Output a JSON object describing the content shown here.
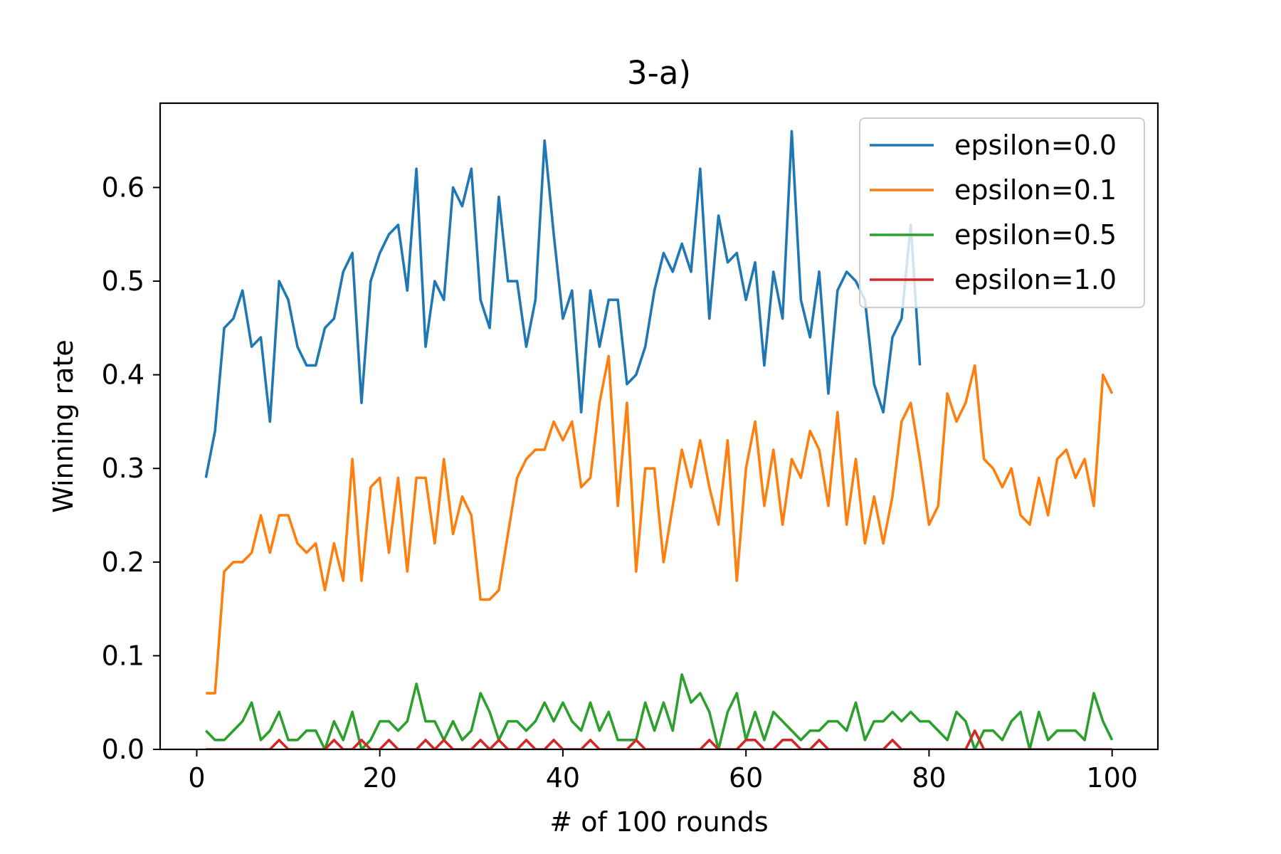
{
  "chart_data": {
    "type": "line",
    "title": "3-a)",
    "xlabel": "# of 100 rounds",
    "ylabel": "Winning rate",
    "xlim": [
      -4,
      105
    ],
    "ylim": [
      0.0,
      0.69
    ],
    "xticks": [
      0,
      20,
      40,
      60,
      80,
      100
    ],
    "xtick_labels": [
      "0",
      "20",
      "40",
      "60",
      "80",
      "100"
    ],
    "yticks": [
      0.0,
      0.1,
      0.2,
      0.3,
      0.4,
      0.5,
      0.6
    ],
    "ytick_labels": [
      "0.0",
      "0.1",
      "0.2",
      "0.3",
      "0.4",
      "0.5",
      "0.6"
    ],
    "grid": false,
    "legend_position": "top-right",
    "series": [
      {
        "name": "epsilon=0.0",
        "color": "#1f77b4",
        "x": [
          1,
          2,
          3,
          4,
          5,
          6,
          7,
          8,
          9,
          10,
          11,
          12,
          13,
          14,
          15,
          16,
          17,
          18,
          19,
          20,
          21,
          22,
          23,
          24,
          25,
          26,
          27,
          28,
          29,
          30,
          31,
          32,
          33,
          34,
          35,
          36,
          37,
          38,
          39,
          40,
          41,
          42,
          43,
          44,
          45,
          46,
          47,
          48,
          49,
          50,
          51,
          52,
          53,
          54,
          55,
          56,
          57,
          58,
          59,
          60,
          61,
          62,
          63,
          64,
          65,
          66,
          67,
          68,
          69,
          70,
          71,
          72,
          73,
          74,
          75,
          76,
          77,
          78,
          79
        ],
        "values": [
          0.29,
          0.34,
          0.45,
          0.46,
          0.49,
          0.43,
          0.44,
          0.35,
          0.5,
          0.48,
          0.43,
          0.41,
          0.41,
          0.45,
          0.46,
          0.51,
          0.53,
          0.37,
          0.5,
          0.53,
          0.55,
          0.56,
          0.49,
          0.62,
          0.43,
          0.5,
          0.48,
          0.6,
          0.58,
          0.62,
          0.48,
          0.45,
          0.59,
          0.5,
          0.5,
          0.43,
          0.48,
          0.65,
          0.55,
          0.46,
          0.49,
          0.36,
          0.49,
          0.43,
          0.48,
          0.48,
          0.39,
          0.4,
          0.43,
          0.49,
          0.53,
          0.51,
          0.54,
          0.51,
          0.62,
          0.46,
          0.57,
          0.52,
          0.53,
          0.48,
          0.52,
          0.41,
          0.51,
          0.46,
          0.66,
          0.48,
          0.44,
          0.51,
          0.38,
          0.49,
          0.51,
          0.5,
          0.48,
          0.39,
          0.36,
          0.44,
          0.46,
          0.56,
          0.41
        ]
      },
      {
        "name": "epsilon=0.1",
        "color": "#ff7f0e",
        "x": [
          1,
          2,
          3,
          4,
          5,
          6,
          7,
          8,
          9,
          10,
          11,
          12,
          13,
          14,
          15,
          16,
          17,
          18,
          19,
          20,
          21,
          22,
          23,
          24,
          25,
          26,
          27,
          28,
          29,
          30,
          31,
          32,
          33,
          34,
          35,
          36,
          37,
          38,
          39,
          40,
          41,
          42,
          43,
          44,
          45,
          46,
          47,
          48,
          49,
          50,
          51,
          52,
          53,
          54,
          55,
          56,
          57,
          58,
          59,
          60,
          61,
          62,
          63,
          64,
          65,
          66,
          67,
          68,
          69,
          70,
          71,
          72,
          73,
          74,
          75,
          76,
          77,
          78,
          79,
          80,
          81,
          82,
          83,
          84,
          85,
          86,
          87,
          88,
          89,
          90,
          91,
          92,
          93,
          94,
          95,
          96,
          97,
          98,
          99,
          100
        ],
        "values": [
          0.06,
          0.06,
          0.19,
          0.2,
          0.2,
          0.21,
          0.25,
          0.21,
          0.25,
          0.25,
          0.22,
          0.21,
          0.22,
          0.17,
          0.22,
          0.18,
          0.31,
          0.18,
          0.28,
          0.29,
          0.21,
          0.29,
          0.19,
          0.29,
          0.29,
          0.22,
          0.31,
          0.23,
          0.27,
          0.25,
          0.16,
          0.16,
          0.17,
          0.23,
          0.29,
          0.31,
          0.32,
          0.32,
          0.35,
          0.33,
          0.35,
          0.28,
          0.29,
          0.37,
          0.42,
          0.26,
          0.37,
          0.19,
          0.3,
          0.3,
          0.2,
          0.26,
          0.32,
          0.28,
          0.33,
          0.28,
          0.24,
          0.33,
          0.18,
          0.3,
          0.35,
          0.26,
          0.32,
          0.24,
          0.31,
          0.29,
          0.34,
          0.32,
          0.26,
          0.36,
          0.24,
          0.31,
          0.22,
          0.27,
          0.22,
          0.27,
          0.35,
          0.37,
          0.31,
          0.24,
          0.26,
          0.38,
          0.35,
          0.37,
          0.41,
          0.31,
          0.3,
          0.28,
          0.3,
          0.25,
          0.24,
          0.29,
          0.25,
          0.31,
          0.32,
          0.29,
          0.31,
          0.26,
          0.4,
          0.38
        ]
      },
      {
        "name": "epsilon=0.5",
        "color": "#2ca02c",
        "x": [
          1,
          2,
          3,
          4,
          5,
          6,
          7,
          8,
          9,
          10,
          11,
          12,
          13,
          14,
          15,
          16,
          17,
          18,
          19,
          20,
          21,
          22,
          23,
          24,
          25,
          26,
          27,
          28,
          29,
          30,
          31,
          32,
          33,
          34,
          35,
          36,
          37,
          38,
          39,
          40,
          41,
          42,
          43,
          44,
          45,
          46,
          47,
          48,
          49,
          50,
          51,
          52,
          53,
          54,
          55,
          56,
          57,
          58,
          59,
          60,
          61,
          62,
          63,
          64,
          65,
          66,
          67,
          68,
          69,
          70,
          71,
          72,
          73,
          74,
          75,
          76,
          77,
          78,
          79,
          80,
          81,
          82,
          83,
          84,
          85,
          86,
          87,
          88,
          89,
          90,
          91,
          92,
          93,
          94,
          95,
          96,
          97,
          98,
          99,
          100
        ],
        "values": [
          0.02,
          0.01,
          0.01,
          0.02,
          0.03,
          0.05,
          0.01,
          0.02,
          0.04,
          0.01,
          0.01,
          0.02,
          0.02,
          0.0,
          0.03,
          0.01,
          0.04,
          0.0,
          0.01,
          0.03,
          0.03,
          0.02,
          0.03,
          0.07,
          0.03,
          0.03,
          0.01,
          0.03,
          0.01,
          0.02,
          0.06,
          0.04,
          0.01,
          0.03,
          0.03,
          0.02,
          0.03,
          0.05,
          0.03,
          0.05,
          0.03,
          0.02,
          0.05,
          0.02,
          0.04,
          0.01,
          0.01,
          0.01,
          0.05,
          0.02,
          0.05,
          0.02,
          0.08,
          0.05,
          0.06,
          0.04,
          0.0,
          0.04,
          0.06,
          0.01,
          0.04,
          0.01,
          0.04,
          0.03,
          0.02,
          0.01,
          0.02,
          0.02,
          0.03,
          0.03,
          0.02,
          0.05,
          0.01,
          0.03,
          0.03,
          0.04,
          0.03,
          0.04,
          0.03,
          0.03,
          0.02,
          0.01,
          0.04,
          0.03,
          0.0,
          0.02,
          0.02,
          0.01,
          0.03,
          0.04,
          0.0,
          0.04,
          0.01,
          0.02,
          0.02,
          0.02,
          0.01,
          0.06,
          0.03,
          0.01
        ]
      },
      {
        "name": "epsilon=1.0",
        "color": "#d62728",
        "x": [
          1,
          2,
          3,
          4,
          5,
          6,
          7,
          8,
          9,
          10,
          11,
          12,
          13,
          14,
          15,
          16,
          17,
          18,
          19,
          20,
          21,
          22,
          23,
          24,
          25,
          26,
          27,
          28,
          29,
          30,
          31,
          32,
          33,
          34,
          35,
          36,
          37,
          38,
          39,
          40,
          41,
          42,
          43,
          44,
          45,
          46,
          47,
          48,
          49,
          50,
          51,
          52,
          53,
          54,
          55,
          56,
          57,
          58,
          59,
          60,
          61,
          62,
          63,
          64,
          65,
          66,
          67,
          68,
          69,
          70,
          71,
          72,
          73,
          74,
          75,
          76,
          77,
          78,
          79,
          80,
          81,
          82,
          83,
          84,
          85,
          86,
          87,
          88,
          89,
          90,
          91,
          92,
          93,
          94,
          95,
          96,
          97,
          98,
          99,
          100
        ],
        "values": [
          0.0,
          0.0,
          0.0,
          0.0,
          0.0,
          0.0,
          0.0,
          0.0,
          0.01,
          0.0,
          0.0,
          0.0,
          0.0,
          0.0,
          0.01,
          0.0,
          0.0,
          0.01,
          0.0,
          0.0,
          0.01,
          0.0,
          0.0,
          0.0,
          0.01,
          0.0,
          0.01,
          0.0,
          0.0,
          0.0,
          0.01,
          0.0,
          0.01,
          0.0,
          0.0,
          0.01,
          0.0,
          0.0,
          0.01,
          0.0,
          0.0,
          0.0,
          0.01,
          0.0,
          0.0,
          0.0,
          0.0,
          0.01,
          0.0,
          0.0,
          0.0,
          0.0,
          0.0,
          0.0,
          0.0,
          0.01,
          0.0,
          0.0,
          0.0,
          0.01,
          0.01,
          0.0,
          0.0,
          0.01,
          0.01,
          0.0,
          0.0,
          0.01,
          0.0,
          0.0,
          0.0,
          0.0,
          0.0,
          0.0,
          0.0,
          0.01,
          0.0,
          0.0,
          0.0,
          0.0,
          0.0,
          0.0,
          0.0,
          0.0,
          0.02,
          0.0,
          0.0,
          0.0,
          0.0,
          0.0,
          0.0,
          0.0,
          0.0,
          0.0,
          0.0,
          0.0,
          0.0,
          0.0,
          0.0,
          0.0
        ]
      }
    ]
  }
}
